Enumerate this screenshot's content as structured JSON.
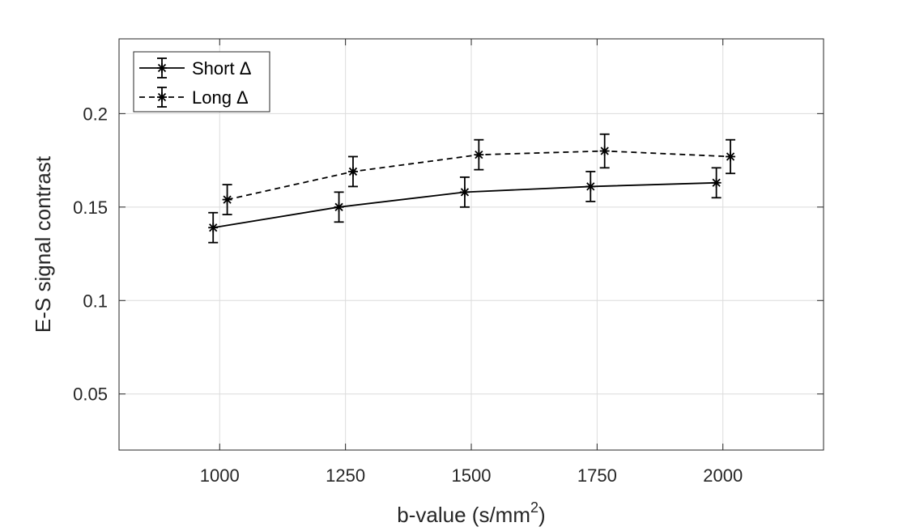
{
  "chart_data": {
    "type": "line",
    "xlabel": "b-value (s/mm",
    "xlabel_sup": "2",
    "xlabel_close": ")",
    "ylabel": "E-S signal contrast",
    "xlim": [
      800,
      2200
    ],
    "ylim": [
      0.02,
      0.24
    ],
    "xticks": [
      1000,
      1250,
      1500,
      1750,
      2000
    ],
    "xtick_labels": [
      "1000",
      "1250",
      "1500",
      "1750",
      "2000"
    ],
    "yticks": [
      0.05,
      0.1,
      0.15,
      0.2
    ],
    "ytick_labels": [
      "0.05",
      "0.1",
      "0.15",
      "0.2"
    ],
    "grid": true,
    "legend_position": "top-left",
    "series": [
      {
        "name": "Short Δ",
        "line_style": "solid",
        "marker": "asterisk",
        "color": "#000000",
        "x": [
          987,
          1237,
          1487,
          1737,
          1987
        ],
        "y": [
          0.139,
          0.15,
          0.158,
          0.161,
          0.163
        ],
        "error": [
          0.008,
          0.008,
          0.008,
          0.008,
          0.008
        ]
      },
      {
        "name": "Long Δ",
        "line_style": "dashed",
        "marker": "asterisk",
        "color": "#000000",
        "x": [
          1015,
          1265,
          1515,
          1765,
          2015
        ],
        "y": [
          0.154,
          0.169,
          0.178,
          0.18,
          0.177
        ],
        "error": [
          0.008,
          0.008,
          0.008,
          0.009,
          0.009
        ]
      }
    ]
  }
}
